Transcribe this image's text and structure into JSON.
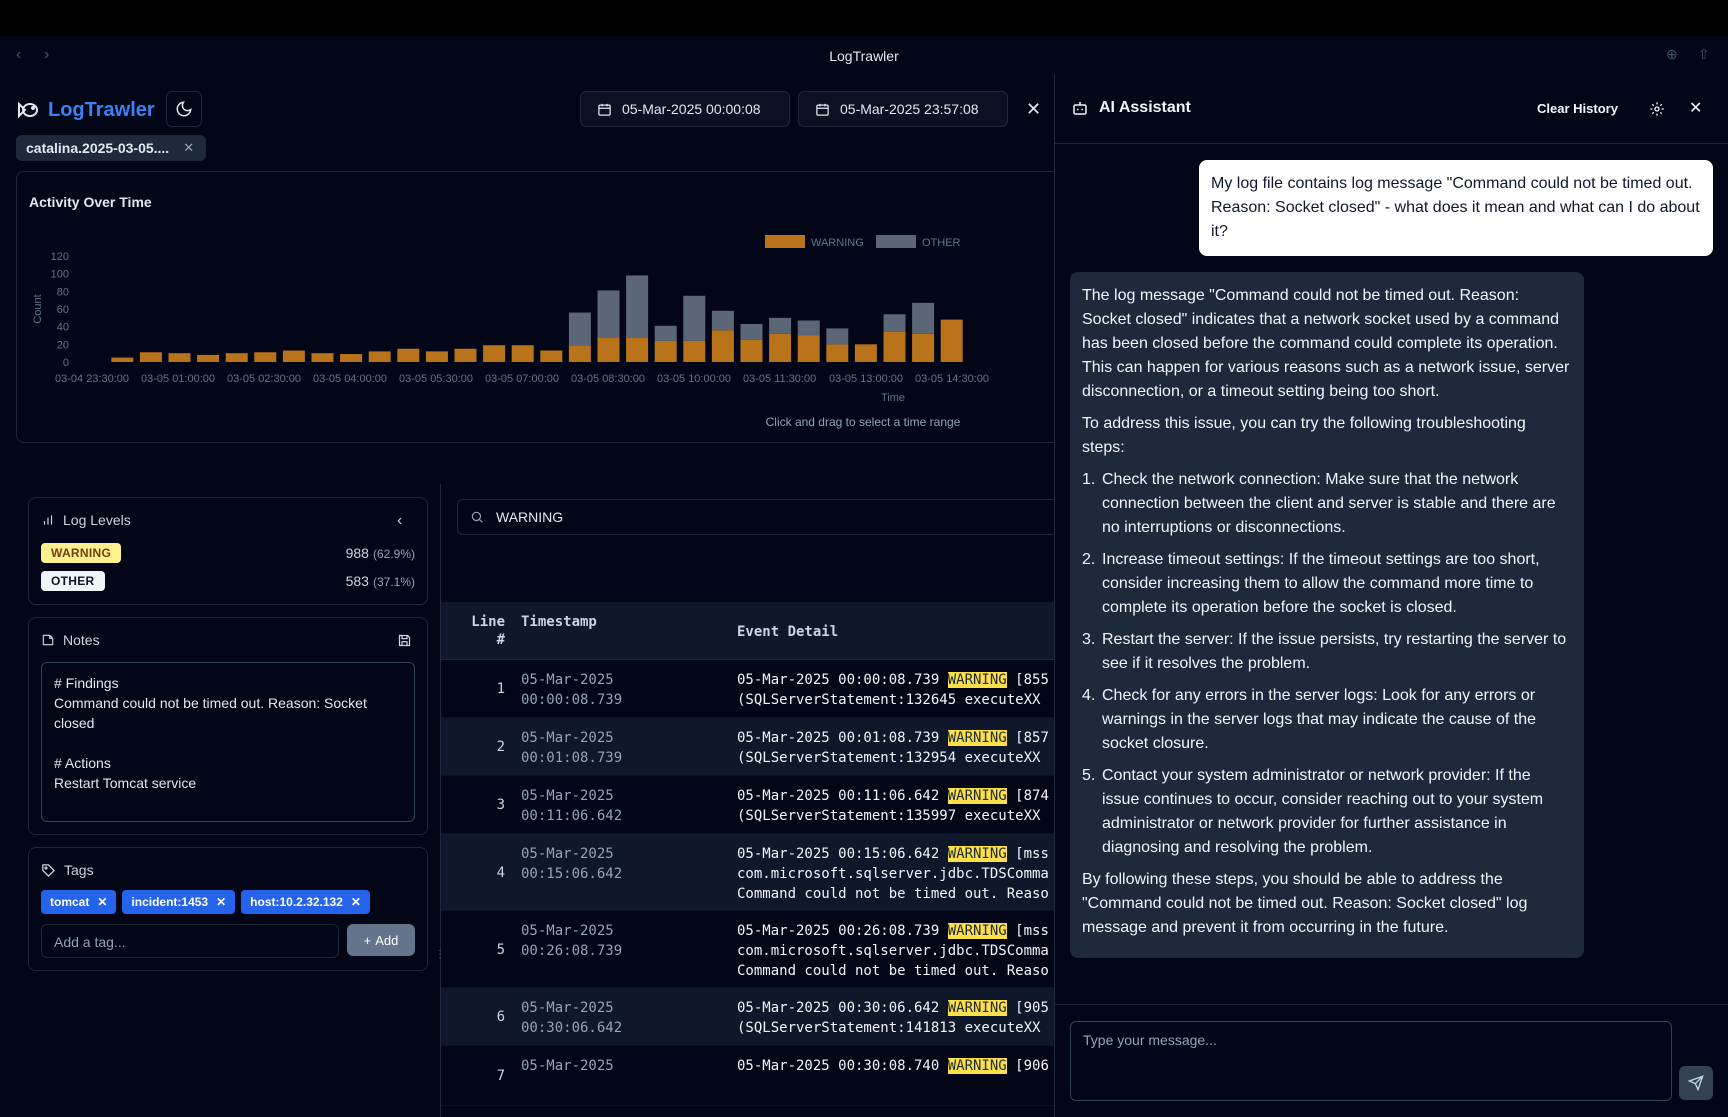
{
  "window": {
    "title": "LogTrawler"
  },
  "app": {
    "name": "LogTrawler"
  },
  "date_range": {
    "start": "05-Mar-2025 00:00:08",
    "end": "05-Mar-2025 23:57:08"
  },
  "file_chip": {
    "label": "catalina.2025-03-05...."
  },
  "chart": {
    "title": "Activity Over Time",
    "hint": "Click and drag to select a time range"
  },
  "chart_data": {
    "type": "bar",
    "stacked": true,
    "xlabel": "Time",
    "ylabel": "Count",
    "ylim": [
      0,
      120
    ],
    "yticks": [
      "0",
      "20",
      "40",
      "60",
      "80",
      "100",
      "120"
    ],
    "xtick_labels": [
      "03-04 23:30:00",
      "03-05 01:00:00",
      "03-05 02:30:00",
      "03-05 04:00:00",
      "03-05 05:30:00",
      "03-05 07:00:00",
      "03-05 08:30:00",
      "03-05 10:00:00",
      "03-05 11:30:00",
      "03-05 13:00:00",
      "03-05 14:30:00"
    ],
    "legend": [
      "WARNING",
      "OTHER"
    ],
    "legend_position": "top-right",
    "colors": {
      "WARNING": "#b8731b",
      "OTHER": "#5b6676"
    },
    "series": [
      {
        "name": "WARNING",
        "values": [
          5,
          11,
          10,
          8,
          10,
          11,
          13,
          10,
          9,
          12,
          15,
          12,
          15,
          19,
          19,
          13,
          19,
          28,
          28,
          24,
          24,
          36,
          25,
          32,
          30,
          20,
          20,
          34,
          32,
          48
        ]
      },
      {
        "name": "OTHER",
        "values": [
          0,
          0,
          0,
          0,
          0,
          0,
          0,
          0,
          0,
          0,
          0,
          0,
          0,
          0,
          0,
          0,
          37,
          53,
          70,
          17,
          51,
          22,
          18,
          18,
          17,
          18,
          0,
          20,
          35,
          0
        ]
      }
    ]
  },
  "log_levels": {
    "title": "Log Levels",
    "items": [
      {
        "label": "WARNING",
        "count": "988",
        "pct": "(62.9%)"
      },
      {
        "label": "OTHER",
        "count": "583",
        "pct": "(37.1%)"
      }
    ]
  },
  "notes": {
    "title": "Notes",
    "content": "# Findings\nCommand could not be timed out. Reason: Socket closed\n\n# Actions\nRestart Tomcat service"
  },
  "tags": {
    "title": "Tags",
    "items": [
      "tomcat",
      "incident:1453",
      "host:10.2.32.132"
    ],
    "input_placeholder": "Add a tag...",
    "add_label": "Add"
  },
  "search": {
    "value": "WARNING"
  },
  "table": {
    "headers": {
      "line": "Line",
      "line_sub": "#",
      "timestamp": "Timestamp",
      "event": "Event Detail"
    },
    "rows": [
      {
        "line": "1",
        "ts1": "05-Mar-2025",
        "ts2": "00:00:08.739",
        "ev": [
          [
            "05-Mar-2025 00:00:08.739 ",
            "WARNING",
            " [855"
          ],
          [
            "(SQLServerStatement:132645 executeXX",
            "",
            ""
          ]
        ]
      },
      {
        "line": "2",
        "ts1": "05-Mar-2025",
        "ts2": "00:01:08.739",
        "ev": [
          [
            "05-Mar-2025 00:01:08.739 ",
            "WARNING",
            " [857"
          ],
          [
            "(SQLServerStatement:132954 executeXX",
            "",
            ""
          ]
        ]
      },
      {
        "line": "3",
        "ts1": "05-Mar-2025",
        "ts2": "00:11:06.642",
        "ev": [
          [
            "05-Mar-2025 00:11:06.642 ",
            "WARNING",
            " [874"
          ],
          [
            "(SQLServerStatement:135997 executeXX",
            "",
            ""
          ]
        ]
      },
      {
        "line": "4",
        "ts1": "05-Mar-2025",
        "ts2": "00:15:06.642",
        "ev": [
          [
            "05-Mar-2025 00:15:06.642 ",
            "WARNING",
            " [mss"
          ],
          [
            "com.microsoft.sqlserver.jdbc.TDSComma",
            "",
            ""
          ],
          [
            "Command could not be timed out. Reaso",
            "",
            ""
          ]
        ]
      },
      {
        "line": "5",
        "ts1": "05-Mar-2025",
        "ts2": "00:26:08.739",
        "ev": [
          [
            "05-Mar-2025 00:26:08.739 ",
            "WARNING",
            " [mss"
          ],
          [
            "com.microsoft.sqlserver.jdbc.TDSComma",
            "",
            ""
          ],
          [
            "Command could not be timed out. Reaso",
            "",
            ""
          ]
        ]
      },
      {
        "line": "6",
        "ts1": "05-Mar-2025",
        "ts2": "00:30:06.642",
        "ev": [
          [
            "05-Mar-2025 00:30:06.642 ",
            "WARNING",
            " [905"
          ],
          [
            "(SQLServerStatement:141813 executeXX",
            "",
            ""
          ]
        ]
      },
      {
        "line": "7",
        "ts1": "05-Mar-2025",
        "ts2": "",
        "ev": [
          [
            "05-Mar-2025 00:30:08.740 ",
            "WARNING",
            " [906"
          ]
        ]
      }
    ]
  },
  "assistant": {
    "title": "AI Assistant",
    "clear_label": "Clear History",
    "user_message": "My log file contains log message \"Command could not be timed out. Reason: Socket closed\" - what does it mean and what can I do about it?",
    "reply_intro": "The log message \"Command could not be timed out. Reason: Socket closed\" indicates that a network socket used by a command has been closed before the command could complete its operation. This can happen for various reasons such as a network issue, server disconnection, or a timeout setting being too short.",
    "reply_lead": "To address this issue, you can try the following troubleshooting steps:",
    "steps": [
      "Check the network connection: Make sure that the network connection between the client and server is stable and there are no interruptions or disconnections.",
      "Increase timeout settings: If the timeout settings are too short, consider increasing them to allow the command more time to complete its operation before the socket is closed.",
      "Restart the server: If the issue persists, try restarting the server to see if it resolves the problem.",
      "Check for any errors in the server logs: Look for any errors or warnings in the server logs that may indicate the cause of the socket closure.",
      "Contact your system administrator or network provider: If the issue continues to occur, consider reaching out to your system administrator or network provider for further assistance in diagnosing and resolving the problem."
    ],
    "reply_outro": "By following these steps, you should be able to address the \"Command could not be timed out. Reason: Socket closed\" log message and prevent it from occurring in the future.",
    "input_placeholder": "Type your message..."
  }
}
